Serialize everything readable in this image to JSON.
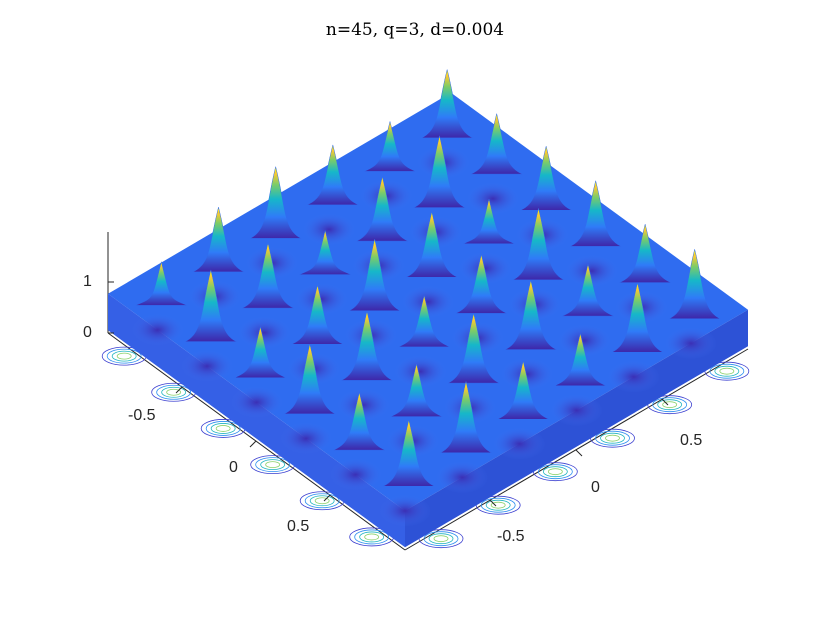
{
  "chart_data": {
    "type": "surface",
    "title": "n=45, q=3, d=0.004",
    "view": "isometric-3d",
    "x_ticks": [
      "-0.5",
      "0",
      "0.5"
    ],
    "y_ticks": [
      "-0.5",
      "0",
      "0.5"
    ],
    "z_ticks": [
      "0",
      "1"
    ],
    "xlim": [
      -1,
      1
    ],
    "ylim": [
      -1,
      1
    ],
    "zlim": [
      0,
      1.8
    ],
    "surface": {
      "grid": 6,
      "peak_height": 1.8,
      "colormap": "parula",
      "colors": [
        "#3e26a8",
        "#2f7bf8",
        "#16b7c9",
        "#7ccc68",
        "#f9c932",
        "#f9fb0e"
      ]
    },
    "contour_plane": "z=0",
    "grid": false
  }
}
